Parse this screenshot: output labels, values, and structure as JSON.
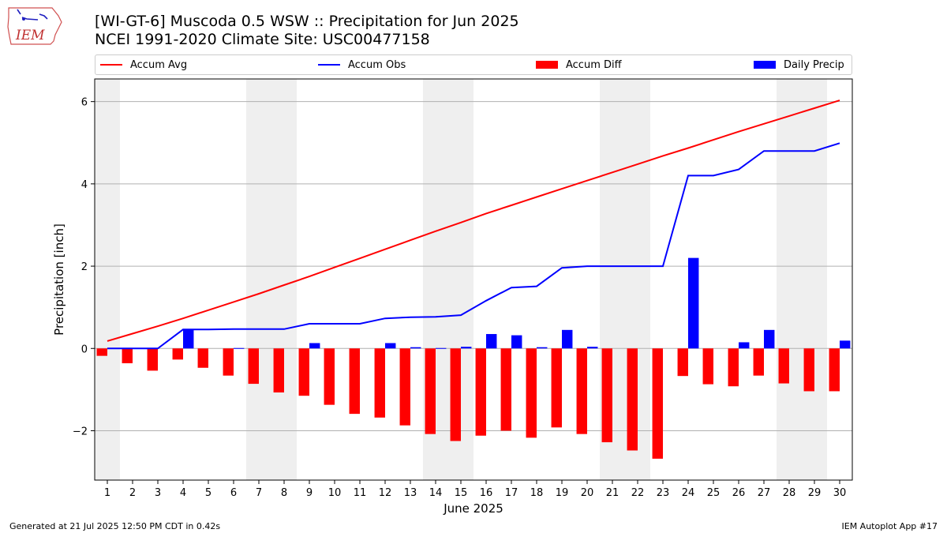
{
  "header": {
    "title_line1": "[WI-GT-6] Muscoda 0.5 WSW :: Precipitation for Jun 2025",
    "title_line2": "NCEI 1991-2020 Climate Site: USC00477158",
    "logo_text": "IEM"
  },
  "footer": {
    "generated": "Generated at 21 Jul 2025 12:50 PM CDT in 0.42s",
    "app": "IEM Autoplot App #17"
  },
  "colors": {
    "avg": "#ff0000",
    "obs": "#0000ff",
    "diff": "#ff0000",
    "daily": "#0000ff",
    "weekend": "#efefef",
    "grid": "#b0b0b0"
  },
  "chart_data": {
    "type": "bar",
    "xlabel": "June 2025",
    "ylabel": "Precipitation [inch]",
    "ylim": [
      -3.2,
      6.55
    ],
    "xlim": [
      0.5,
      30.5
    ],
    "yticks": [
      -2,
      0,
      2,
      4,
      6
    ],
    "ytick_labels": [
      "−2",
      "0",
      "2",
      "4",
      "6"
    ],
    "x": [
      1,
      2,
      3,
      4,
      5,
      6,
      7,
      8,
      9,
      10,
      11,
      12,
      13,
      14,
      15,
      16,
      17,
      18,
      19,
      20,
      21,
      22,
      23,
      24,
      25,
      26,
      27,
      28,
      29,
      30
    ],
    "x_labels": [
      "1",
      "2",
      "3",
      "4",
      "5",
      "6",
      "7",
      "8",
      "9",
      "10",
      "11",
      "12",
      "13",
      "14",
      "15",
      "16",
      "17",
      "18",
      "19",
      "20",
      "21",
      "22",
      "23",
      "24",
      "25",
      "26",
      "27",
      "28",
      "29",
      "30"
    ],
    "grid": "horizontal",
    "legend_placement": "top",
    "weekend_days": [
      1,
      7,
      8,
      14,
      15,
      21,
      22,
      28,
      29
    ],
    "series": [
      {
        "name": "Accum Avg",
        "type": "line",
        "values": [
          0.18,
          0.36,
          0.54,
          0.73,
          0.93,
          1.13,
          1.33,
          1.54,
          1.75,
          1.97,
          2.19,
          2.41,
          2.63,
          2.85,
          3.06,
          3.28,
          3.48,
          3.68,
          3.88,
          4.08,
          4.28,
          4.48,
          4.68,
          4.87,
          5.07,
          5.27,
          5.46,
          5.65,
          5.84,
          6.03
        ]
      },
      {
        "name": "Accum Obs",
        "type": "line",
        "values": [
          0,
          0,
          0,
          0.46,
          0.46,
          0.47,
          0.47,
          0.47,
          0.6,
          0.6,
          0.6,
          0.73,
          0.76,
          0.77,
          0.81,
          1.16,
          1.48,
          1.51,
          1.96,
          2.0,
          2.0,
          2.0,
          2.0,
          4.2,
          4.2,
          4.35,
          4.8,
          4.8,
          4.8,
          4.99
        ]
      },
      {
        "name": "Accum Diff",
        "type": "bar",
        "values": [
          -0.18,
          -0.36,
          -0.54,
          -0.27,
          -0.47,
          -0.66,
          -0.86,
          -1.07,
          -1.15,
          -1.37,
          -1.59,
          -1.68,
          -1.87,
          -2.08,
          -2.25,
          -2.12,
          -2.0,
          -2.17,
          -1.92,
          -2.08,
          -2.28,
          -2.48,
          -2.68,
          -0.67,
          -0.87,
          -0.92,
          -0.66,
          -0.85,
          -1.04,
          -1.04
        ]
      },
      {
        "name": "Daily Precip",
        "type": "bar",
        "values": [
          0,
          0,
          0,
          0.46,
          0,
          0.01,
          0,
          0,
          0.13,
          0,
          0,
          0.13,
          0.03,
          0.01,
          0.04,
          0.35,
          0.32,
          0.03,
          0.45,
          0.04,
          0,
          0,
          0,
          2.2,
          0,
          0.15,
          0.45,
          0,
          0,
          0.19
        ]
      }
    ]
  }
}
